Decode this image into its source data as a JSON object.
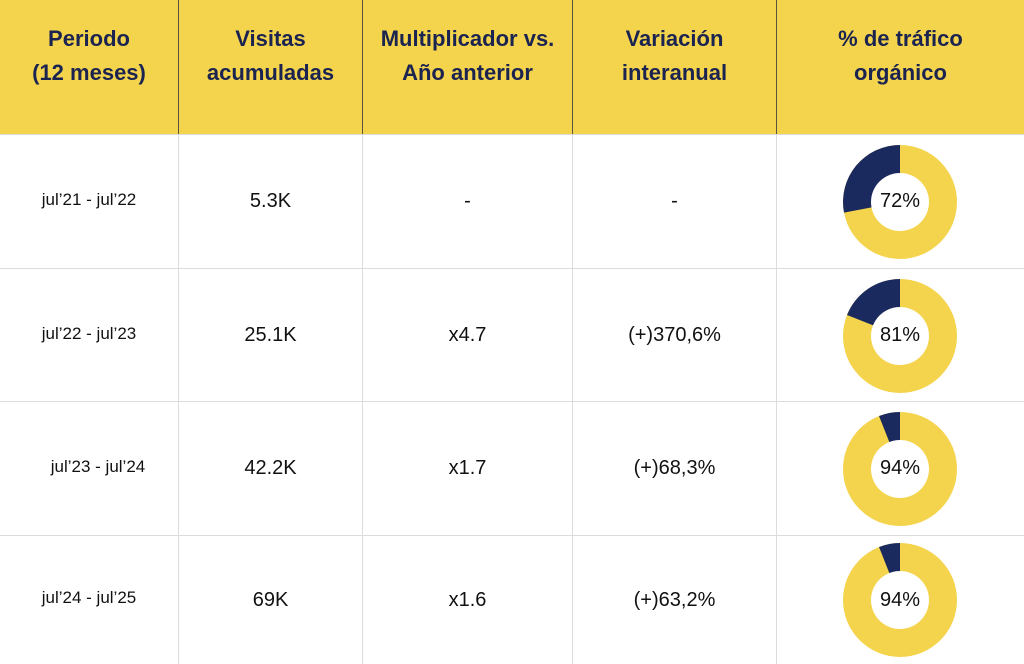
{
  "colors": {
    "header_bg": "#f4d44d",
    "header_text": "#1b2450",
    "organic": "#f4d44d",
    "non_organic": "#1b2a5e"
  },
  "headers": [
    "Periodo\n(12 meses)",
    "Visitas\nacumuladas",
    "Multiplicador vs.\nAño anterior",
    "Variación\ninteranual",
    "% de tráfico\norgánico"
  ],
  "rows": [
    {
      "period": "jul’21 - jul’22",
      "visits": "5.3K",
      "multiplier": "-",
      "variation": "-",
      "organic_pct": 72,
      "organic_label": "72%"
    },
    {
      "period": "jul’22 - jul’23",
      "visits": "25.1K",
      "multiplier": "x4.7",
      "variation": "(+)370,6%",
      "organic_pct": 81,
      "organic_label": "81%"
    },
    {
      "period": "jul’23 - jul’24",
      "visits": "42.2K",
      "multiplier": "x1.7",
      "variation": "(+)68,3%",
      "organic_pct": 94,
      "organic_label": "94%"
    },
    {
      "period": "jul’24 - jul’25",
      "visits": "69K",
      "multiplier": "x1.6",
      "variation": "(+)63,2%",
      "organic_pct": 94,
      "organic_label": "94%"
    }
  ],
  "chart_data": {
    "type": "table",
    "title": "",
    "columns": [
      "Periodo (12 meses)",
      "Visitas acumuladas",
      "Multiplicador vs. Año anterior",
      "Variación interanual",
      "% de tráfico orgánico"
    ],
    "rows": [
      [
        "jul’21 - jul’22",
        "5.3K",
        "-",
        "-",
        "72%"
      ],
      [
        "jul’22 - jul’23",
        "25.1K",
        "x4.7",
        "(+)370,6%",
        "81%"
      ],
      [
        "jul’23 - jul’24",
        "42.2K",
        "x1.7",
        "(+)68,3%",
        "94%"
      ],
      [
        "jul’24 - jul’25",
        "69K",
        "x1.6",
        "(+)63,2%",
        "94%"
      ]
    ],
    "embedded_charts": {
      "type": "pie",
      "style": "donut",
      "series": [
        {
          "name": "jul’21 - jul’22",
          "organic": 72,
          "other": 28
        },
        {
          "name": "jul’22 - jul’23",
          "organic": 81,
          "other": 19
        },
        {
          "name": "jul’23 - jul’24",
          "organic": 94,
          "other": 6
        },
        {
          "name": "jul’24 - jul’25",
          "organic": 94,
          "other": 6
        }
      ]
    }
  }
}
